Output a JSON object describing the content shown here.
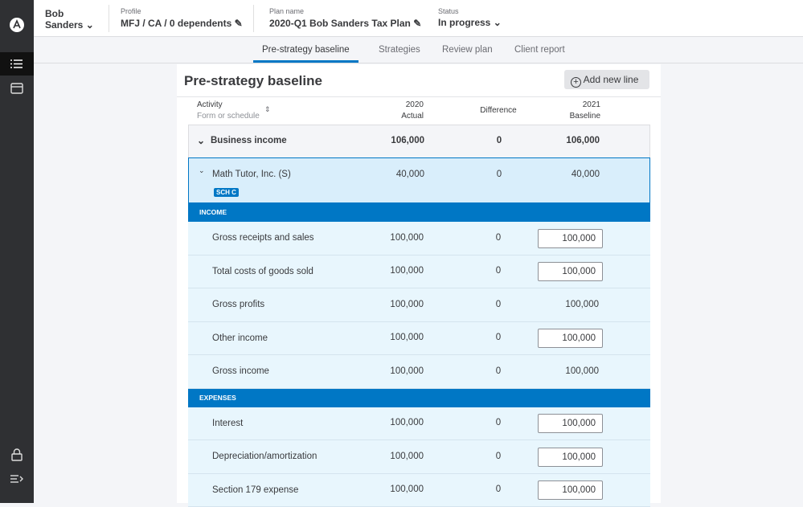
{
  "header": {
    "client_first": "Bob",
    "client_last": "Sanders",
    "profile_label": "Profile",
    "profile": "MFJ / CA / 0 dependents",
    "plan_label": "Plan name",
    "plan": "2020-Q1 Bob Sanders Tax Plan",
    "status_label": "Status",
    "status": "In progress"
  },
  "tabs": [
    "Pre-strategy baseline",
    "Strategies",
    "Review plan",
    "Client report"
  ],
  "panel": {
    "title": "Pre-strategy baseline",
    "add_button": "Add new line"
  },
  "table": {
    "header": {
      "activity": "Activity",
      "form": "Form or schedule",
      "year_actual": "2020",
      "actual": "Actual",
      "difference": "Difference",
      "year_baseline": "2021",
      "baseline": "Baseline"
    },
    "group": {
      "label": "Business income",
      "actual": "106,000",
      "difference": "0",
      "baseline": "106,000"
    },
    "entity": {
      "label": "Math Tutor, Inc. (S)",
      "badge": "SCH C",
      "actual": "40,000",
      "difference": "0",
      "baseline": "40,000"
    },
    "sections": [
      {
        "title": "INCOME",
        "rows": [
          {
            "label": "Gross receipts and sales",
            "actual": "100,000",
            "difference": "0",
            "baseline": "100,000",
            "editable": true
          },
          {
            "label": "Total costs of goods sold",
            "actual": "100,000",
            "difference": "0",
            "baseline": "100,000",
            "editable": true
          },
          {
            "label": "Gross profits",
            "actual": "100,000",
            "difference": "0",
            "baseline": "100,000",
            "editable": false
          },
          {
            "label": "Other income",
            "actual": "100,000",
            "difference": "0",
            "baseline": "100,000",
            "editable": true
          },
          {
            "label": "Gross income",
            "actual": "100,000",
            "difference": "0",
            "baseline": "100,000",
            "editable": false
          }
        ]
      },
      {
        "title": "EXPENSES",
        "rows": [
          {
            "label": "Interest",
            "actual": "100,000",
            "difference": "0",
            "baseline": "100,000",
            "editable": true
          },
          {
            "label": "Depreciation/amortization",
            "actual": "100,000",
            "difference": "0",
            "baseline": "100,000",
            "editable": true
          },
          {
            "label": "Section 179 expense",
            "actual": "100,000",
            "difference": "0",
            "baseline": "100,000",
            "editable": true
          }
        ]
      }
    ]
  }
}
